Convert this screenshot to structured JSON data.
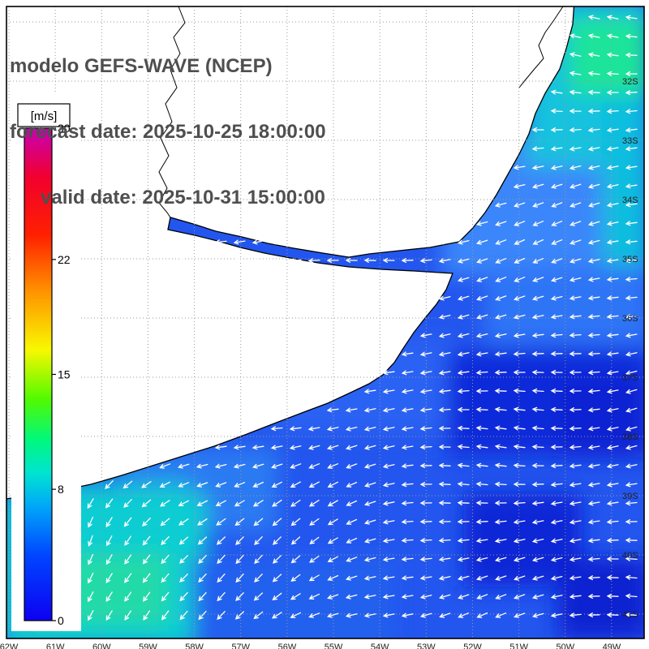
{
  "header": {
    "title": "modelo GEFS-WAVE (NCEP)",
    "forecast_line": "forecast date: 2025-10-25 18:00:00",
    "valid_line": "valid date: 2025-10-31 15:00:00"
  },
  "colorbar": {
    "units_label": "[m/s]",
    "min": 0,
    "max": 30,
    "ticks": [
      30,
      22,
      15,
      8,
      0
    ],
    "gradient_stops": [
      {
        "value": 0,
        "color": "#0d00f2"
      },
      {
        "value": 4,
        "color": "#0046ff"
      },
      {
        "value": 7,
        "color": "#00a8f8"
      },
      {
        "value": 9,
        "color": "#00e4d0"
      },
      {
        "value": 11,
        "color": "#00f87e"
      },
      {
        "value": 13.5,
        "color": "#52fa00"
      },
      {
        "value": 16.5,
        "color": "#f8f800"
      },
      {
        "value": 20,
        "color": "#ff9400"
      },
      {
        "value": 23.5,
        "color": "#ff2000"
      },
      {
        "value": 27,
        "color": "#f2002e"
      },
      {
        "value": 30,
        "color": "#c800b6"
      }
    ]
  },
  "axes": {
    "lat_labels": [
      "32S",
      "33S",
      "34S",
      "35S",
      "36S",
      "37S",
      "38S",
      "39S",
      "40S",
      "41S"
    ],
    "lon_labels": [
      "62W",
      "61W",
      "60W",
      "59W",
      "58W",
      "57W",
      "56W",
      "55W",
      "54W",
      "53W",
      "52W",
      "51W",
      "50W",
      "49W"
    ]
  },
  "map": {
    "arrow_color": "#ffffff",
    "grid_color": "#9a9a9a",
    "coastline_color": "#000000",
    "land_color": "#ffffff",
    "ocean_base_color": "#2356ee"
  }
}
